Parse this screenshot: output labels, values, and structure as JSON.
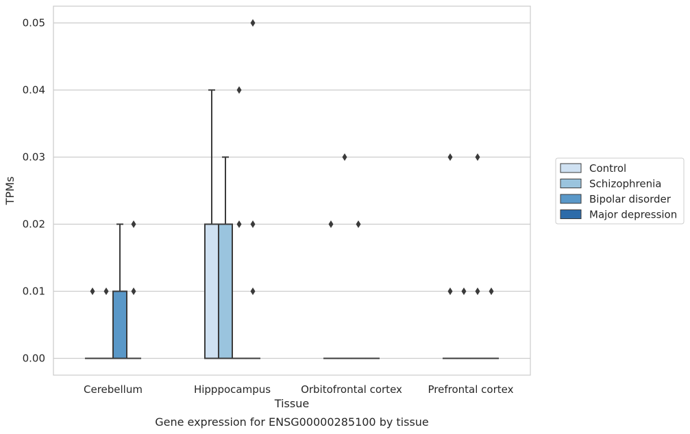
{
  "chart_data": {
    "type": "box",
    "title": "",
    "caption": "Gene expression for ENSG00000285100 by tissue",
    "xlabel": "Tissue",
    "ylabel": "TPMs",
    "ylim": [
      -0.0025,
      0.0525
    ],
    "yticks": [
      "0.00",
      "0.01",
      "0.02",
      "0.03",
      "0.04",
      "0.05"
    ],
    "ytick_values": [
      0,
      0.01,
      0.02,
      0.03,
      0.04,
      0.05
    ],
    "grid": "horizontal",
    "legend_position": "right",
    "categories": [
      "Cerebellum",
      "Hipppocampus",
      "Orbitofrontal cortex",
      "Prefrontal cortex"
    ],
    "series": [
      {
        "name": "Control",
        "color": "#cfe1f2",
        "boxes": [
          {
            "q1": 0,
            "median": 0,
            "q3": 0,
            "whisker_low": 0,
            "whisker_high": 0,
            "outliers": [
              0.01
            ]
          },
          {
            "q1": 0,
            "median": 0,
            "q3": 0.02,
            "whisker_low": 0,
            "whisker_high": 0.04,
            "outliers": []
          },
          {
            "q1": 0,
            "median": 0,
            "q3": 0,
            "whisker_low": 0,
            "whisker_high": 0,
            "outliers": [
              0.02
            ]
          },
          {
            "q1": 0,
            "median": 0,
            "q3": 0,
            "whisker_low": 0,
            "whisker_high": 0,
            "outliers": [
              0.01,
              0.03
            ]
          }
        ]
      },
      {
        "name": "Schizophrenia",
        "color": "#9ac4de",
        "boxes": [
          {
            "q1": 0,
            "median": 0,
            "q3": 0,
            "whisker_low": 0,
            "whisker_high": 0,
            "outliers": [
              0.01
            ]
          },
          {
            "q1": 0,
            "median": 0,
            "q3": 0.02,
            "whisker_low": 0,
            "whisker_high": 0.03,
            "outliers": []
          },
          {
            "q1": 0,
            "median": 0,
            "q3": 0,
            "whisker_low": 0,
            "whisker_high": 0,
            "outliers": [
              0.03
            ]
          },
          {
            "q1": 0,
            "median": 0,
            "q3": 0,
            "whisker_low": 0,
            "whisker_high": 0,
            "outliers": [
              0.01
            ]
          }
        ]
      },
      {
        "name": "Bipolar disorder",
        "color": "#5a98c8",
        "boxes": [
          {
            "q1": 0,
            "median": 0,
            "q3": 0.01,
            "whisker_low": 0,
            "whisker_high": 0.02,
            "outliers": []
          },
          {
            "q1": 0,
            "median": 0,
            "q3": 0,
            "whisker_low": 0,
            "whisker_high": 0,
            "outliers": [
              0.02,
              0.04
            ]
          },
          {
            "q1": 0,
            "median": 0,
            "q3": 0,
            "whisker_low": 0,
            "whisker_high": 0,
            "outliers": [
              0.02
            ]
          },
          {
            "q1": 0,
            "median": 0,
            "q3": 0,
            "whisker_low": 0,
            "whisker_high": 0,
            "outliers": [
              0.01,
              0.03
            ]
          }
        ]
      },
      {
        "name": "Major depression",
        "color": "#2d6ba9",
        "boxes": [
          {
            "q1": 0,
            "median": 0,
            "q3": 0,
            "whisker_low": 0,
            "whisker_high": 0,
            "outliers": [
              0.01,
              0.02
            ]
          },
          {
            "q1": 0,
            "median": 0,
            "q3": 0,
            "whisker_low": 0,
            "whisker_high": 0,
            "outliers": [
              0.01,
              0.02,
              0.05
            ]
          },
          {
            "q1": 0,
            "median": 0,
            "q3": 0,
            "whisker_low": 0,
            "whisker_high": 0,
            "outliers": []
          },
          {
            "q1": 0,
            "median": 0,
            "q3": 0,
            "whisker_low": 0,
            "whisker_high": 0,
            "outliers": [
              0.01
            ]
          }
        ]
      }
    ]
  }
}
